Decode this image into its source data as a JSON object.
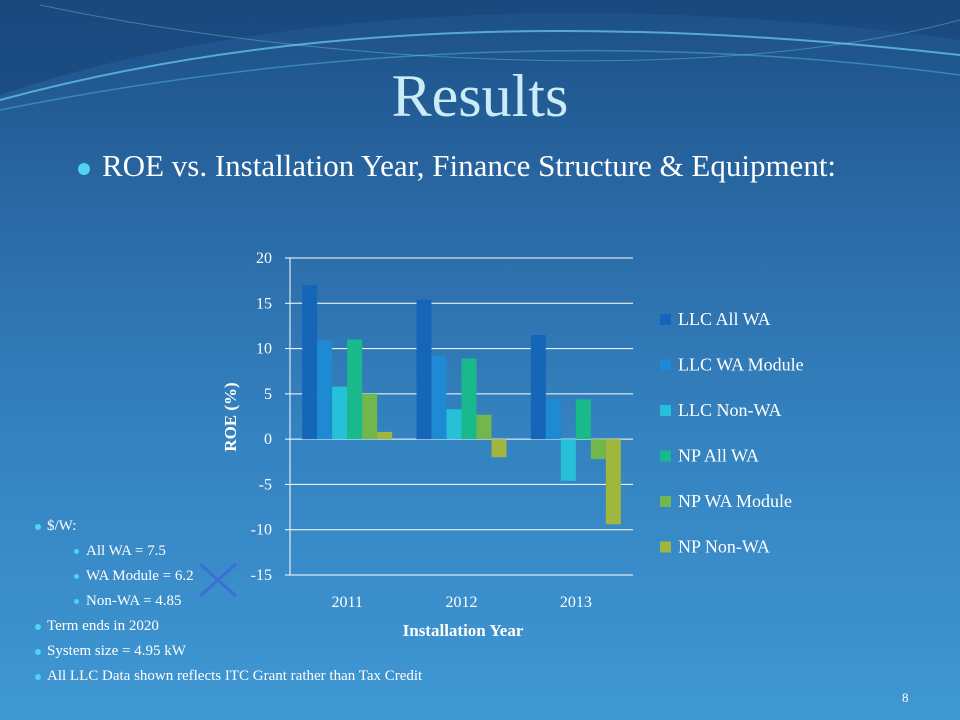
{
  "slide": {
    "title": "Results",
    "subtitle": "ROE vs. Installation Year, Finance Structure & Equipment:",
    "page_number": "8"
  },
  "notes": [
    {
      "text": "$/W:",
      "level": 1
    },
    {
      "text": "All WA = 7.5",
      "level": 2
    },
    {
      "text": "WA Module = 6.2",
      "level": 2
    },
    {
      "text": "Non-WA = 4.85",
      "level": 2
    },
    {
      "text": "Term ends in 2020",
      "level": 1
    },
    {
      "text": "System size = 4.95 kW",
      "level": 1
    },
    {
      "text": "All LLC Data shown reflects ITC Grant rather than Tax Credit",
      "level": 1
    }
  ],
  "chart_data": {
    "type": "bar",
    "xlabel": "Installation Year",
    "ylabel": "ROE (%)",
    "ylim": [
      -15,
      20
    ],
    "yticks": [
      "20",
      "15",
      "10",
      "5",
      "0",
      "-5",
      "-10",
      "-15"
    ],
    "categories": [
      "2011",
      "2012",
      "2013"
    ],
    "legend_position": "right",
    "series": [
      {
        "name": "LLC All WA",
        "color": "#1565b8",
        "values": [
          17.0,
          15.4,
          11.5
        ]
      },
      {
        "name": "LLC WA Module",
        "color": "#1e8ad3",
        "values": [
          10.9,
          9.2,
          4.4
        ]
      },
      {
        "name": "LLC Non-WA",
        "color": "#26c0d8",
        "values": [
          5.8,
          3.3,
          -4.6
        ]
      },
      {
        "name": "NP All WA",
        "color": "#19b98c",
        "values": [
          11.0,
          8.9,
          4.4
        ]
      },
      {
        "name": "NP WA Module",
        "color": "#72b64e",
        "values": [
          5.0,
          2.7,
          -2.2
        ]
      },
      {
        "name": "NP Non-WA",
        "color": "#a0b63c",
        "values": [
          0.8,
          -2.0,
          -9.4
        ]
      }
    ]
  }
}
